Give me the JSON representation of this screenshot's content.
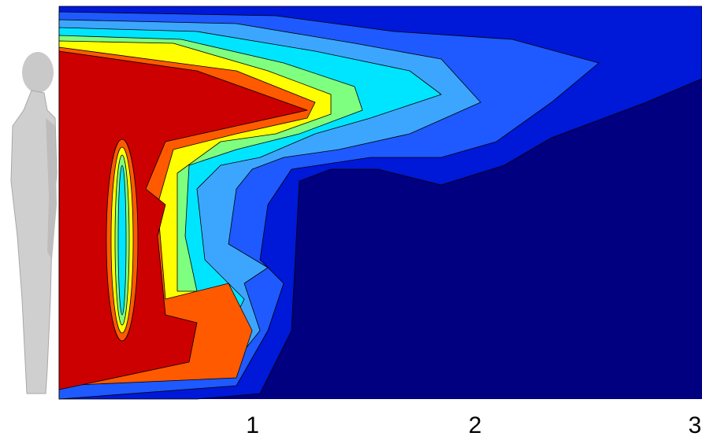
{
  "chart_data": {
    "type": "contour",
    "xlim": [
      0.13,
      3.02
    ],
    "xticks": [
      1,
      2,
      3
    ]
  }
}
